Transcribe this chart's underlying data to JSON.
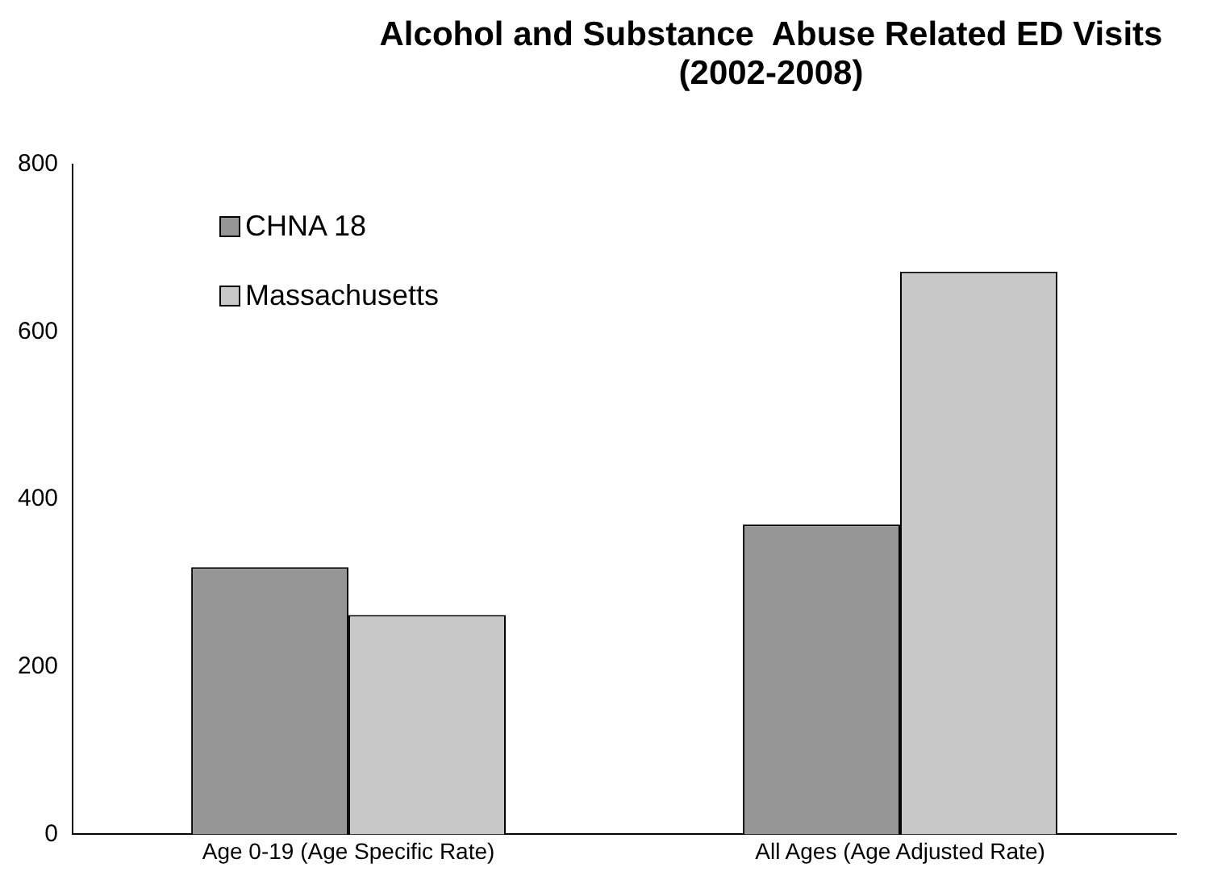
{
  "chart_data": {
    "type": "bar",
    "title": "Alcohol and Substance  Abuse Related ED Visits (2002-2008)",
    "categories": [
      "Age 0-19 (Age Specific Rate)",
      "All Ages (Age Adjusted Rate)"
    ],
    "series": [
      {
        "name": "CHNA 18",
        "color": "#969696",
        "values": [
          319,
          370
        ]
      },
      {
        "name": "Massachusetts",
        "color": "#c8c8c8",
        "values": [
          262,
          672
        ]
      }
    ],
    "ylim": [
      0,
      800
    ],
    "yticks": [
      0,
      200,
      400,
      600,
      800
    ],
    "grid": false,
    "legend": "top left"
  }
}
